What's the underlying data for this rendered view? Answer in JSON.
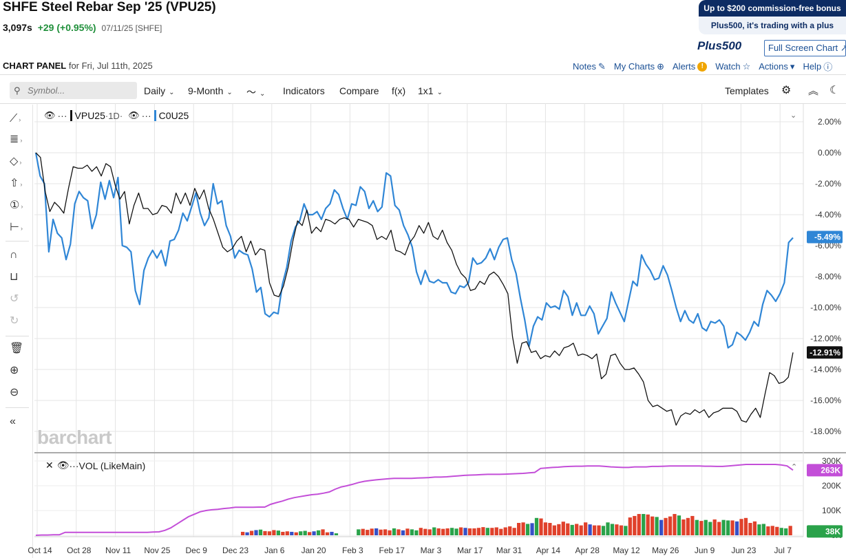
{
  "header": {
    "title": "SHFE Steel Rebar Sep '25 (VPU25)",
    "last": "3,097s",
    "change": "+29 (+0.95%)",
    "date_exchange": "07/11/25 [SHFE]"
  },
  "promo": {
    "line1": "Up to $200 commission-free bonus",
    "line2": "Plus500, it's trading with a plus",
    "brand": "Plus500",
    "fullscreen": "Full Screen Chart"
  },
  "panel": {
    "title": "CHART PANEL",
    "subtitle": "for Fri, Jul 11th, 2025",
    "links": [
      "Notes",
      "My Charts",
      "Alerts",
      "Watch",
      "Actions",
      "Help"
    ]
  },
  "toolbar": {
    "symbol_placeholder": "Symbol...",
    "interval": "Daily",
    "range": "9-Month",
    "indicators": "Indicators",
    "compare": "Compare",
    "fx": "f(x)",
    "layout": "1x1",
    "templates": "Templates"
  },
  "legend": {
    "main_symbol": "VPU25",
    "main_period": "·1D·",
    "compare_symbol": "C0U25",
    "volume_label": "VOL (LikeMain)"
  },
  "watermark": "barchart",
  "colors": {
    "main_line": "#111111",
    "compare_line": "#2f86d6",
    "volume_line": "#c34ed8",
    "vol_up": "#2aa24a",
    "vol_down": "#e0412b",
    "vol_neutral": "#3650c7"
  },
  "chart_data": {
    "type": "line",
    "x_labels": [
      "Oct 14",
      "Oct 28",
      "Nov 11",
      "Nov 25",
      "Dec 9",
      "Dec 23",
      "Jan 6",
      "Jan 20",
      "Feb 3",
      "Feb 17",
      "Mar 3",
      "Mar 17",
      "Mar 31",
      "Apr 14",
      "Apr 28",
      "May 12",
      "May 26",
      "Jun 9",
      "Jun 23",
      "Jul 7"
    ],
    "y_ticks": [
      "2.00%",
      "0.00%",
      "-2.00%",
      "-4.00%",
      "-6.00%",
      "-8.00%",
      "-10.00%",
      "-12.00%",
      "-14.00%",
      "-16.00%",
      "-18.00%"
    ],
    "ylim": [
      -19,
      2.5
    ],
    "series": [
      {
        "name": "VPU25",
        "last_label": "-12.91%",
        "values": [
          0.0,
          -0.3,
          -2.5,
          -3.8,
          -3.2,
          -3.5,
          -3.9,
          -2.3,
          -0.9,
          -1.0,
          -1.0,
          -0.8,
          -1.2,
          -0.9,
          -1.5,
          -0.7,
          -0.9,
          -2.1,
          -3.0,
          -2.5,
          -4.6,
          -3.4,
          -2.6,
          -3.6,
          -3.6,
          -4.0,
          -3.9,
          -3.4,
          -3.5,
          -3.9,
          -2.6,
          -3.3,
          -2.6,
          -3.4,
          -2.3,
          -3.0,
          -2.4,
          -3.6,
          -4.3,
          -5.2,
          -6.1,
          -6.4,
          -6.2,
          -5.7,
          -5.4,
          -6.4,
          -5.7,
          -6.6,
          -6.2,
          -6.3,
          -8.4,
          -9.2,
          -9.3,
          -8.6,
          -7.4,
          -5.7,
          -4.4,
          -4.7,
          -3.7,
          -5.2,
          -4.8,
          -5.1,
          -4.3,
          -4.4,
          -4.6,
          -4.3,
          -4.2,
          -4.3,
          -4.8,
          -4.3,
          -4.4,
          -4.5,
          -4.7,
          -5.6,
          -5.4,
          -5.6,
          -5.0,
          -6.3,
          -6.4,
          -6.6,
          -5.8,
          -5.4,
          -4.7,
          -5.2,
          -4.5,
          -5.4,
          -5.6,
          -5.0,
          -5.8,
          -6.3,
          -7.2,
          -7.8,
          -8.1,
          -8.9,
          -8.8,
          -8.3,
          -8.5,
          -7.9,
          -7.7,
          -8.0,
          -8.5,
          -9.1,
          -11.9,
          -13.6,
          -12.3,
          -12.2,
          -12.9,
          -12.8,
          -13.3,
          -13.1,
          -13.2,
          -12.8,
          -13.1,
          -12.6,
          -12.5,
          -12.3,
          -13.1,
          -13.0,
          -13.1,
          -13.3,
          -13.0,
          -14.6,
          -14.3,
          -13.1,
          -13.0,
          -13.6,
          -14.0,
          -14.0,
          -13.9,
          -14.3,
          -14.8,
          -16.0,
          -16.4,
          -16.3,
          -16.5,
          -16.7,
          -16.6,
          -17.6,
          -17.0,
          -16.8,
          -16.9,
          -16.6,
          -16.8,
          -16.6,
          -17.1,
          -16.8,
          -16.7,
          -16.5,
          -16.5,
          -16.5,
          -16.7,
          -17.3,
          -17.4,
          -16.9,
          -16.5,
          -17.1,
          -15.6,
          -14.2,
          -14.4,
          -14.9,
          -14.8,
          -14.5,
          -12.9
        ]
      },
      {
        "name": "C0U25",
        "last_label": "-5.49%",
        "values": [
          0.0,
          -1.5,
          -2.0,
          -6.4,
          -4.3,
          -5.2,
          -5.5,
          -6.9,
          -5.9,
          -3.3,
          -2.5,
          -2.9,
          -3.1,
          -4.9,
          -4.0,
          -1.9,
          -3.0,
          -1.8,
          -2.9,
          -1.6,
          -6.0,
          -6.1,
          -6.4,
          -8.9,
          -9.8,
          -7.6,
          -6.8,
          -6.3,
          -6.8,
          -6.3,
          -7.3,
          -5.7,
          -5.6,
          -5.0,
          -3.9,
          -4.4,
          -3.5,
          -2.6,
          -3.9,
          -4.7,
          -4.2,
          -2.0,
          -3.3,
          -3.1,
          -4.7,
          -5.4,
          -6.8,
          -6.3,
          -6.5,
          -6.6,
          -7.5,
          -9.0,
          -8.7,
          -10.4,
          -10.6,
          -10.3,
          -10.4,
          -8.5,
          -7.4,
          -5.7,
          -4.8,
          -4.4,
          -3.3,
          -4.0,
          -4.0,
          -3.8,
          -4.3,
          -3.6,
          -3.3,
          -2.4,
          -2.7,
          -3.6,
          -4.3,
          -3.3,
          -3.4,
          -2.2,
          -2.5,
          -3.6,
          -3.1,
          -3.8,
          -3.5,
          -1.3,
          -1.5,
          -3.4,
          -3.7,
          -4.7,
          -5.3,
          -6.1,
          -7.7,
          -8.5,
          -7.6,
          -8.3,
          -8.4,
          -8.2,
          -8.4,
          -8.4,
          -9.0,
          -9.1,
          -8.6,
          -8.7,
          -8.4,
          -6.8,
          -7.2,
          -7.1,
          -6.8,
          -6.2,
          -6.9,
          -6.1,
          -5.6,
          -5.5,
          -6.9,
          -7.8,
          -9.4,
          -10.8,
          -12.5,
          -11.2,
          -10.6,
          -10.8,
          -9.7,
          -10.0,
          -9.9,
          -10.1,
          -8.9,
          -9.3,
          -10.5,
          -9.7,
          -10.5,
          -10.5,
          -9.9,
          -10.4,
          -11.7,
          -11.2,
          -10.7,
          -9.0,
          -9.7,
          -10.3,
          -10.9,
          -9.6,
          -8.3,
          -8.6,
          -6.6,
          -7.2,
          -7.6,
          -8.2,
          -8.1,
          -7.3,
          -7.9,
          -8.9,
          -10.0,
          -10.9,
          -10.2,
          -10.8,
          -11.0,
          -10.4,
          -11.3,
          -11.5,
          -10.9,
          -11.0,
          -10.8,
          -11.2,
          -12.6,
          -12.4,
          -11.6,
          -11.8,
          -12.1,
          -11.6,
          -10.9,
          -11.2,
          -9.8,
          -8.9,
          -9.2,
          -9.6,
          -9.1,
          -8.4,
          -5.8,
          -5.49
        ]
      }
    ],
    "volume": {
      "label": "VOL (LikeMain)",
      "y_ticks": [
        "300K",
        "200K",
        "100K",
        "0K"
      ],
      "ylim": [
        0,
        300000
      ],
      "last_bar_label": "38K",
      "last_line_label": "263K",
      "bars_x_labels_positions": "aligned",
      "bars_first_date_index": 75,
      "bars": [
        14000,
        12000,
        18000,
        21000,
        23000,
        17000,
        16000,
        21000,
        19000,
        14000,
        16000,
        14000,
        12000,
        16000,
        18000,
        13000,
        16000,
        20000,
        24000,
        12000,
        14000,
        8000,
        0,
        0,
        0,
        0,
        24000,
        26000,
        22000,
        27000,
        28000,
        23000,
        24000,
        20000,
        28000,
        24000,
        20000,
        27000,
        24000,
        20000,
        30000,
        26000,
        24000,
        32000,
        28000,
        26000,
        28000,
        30000,
        27000,
        32000,
        30000,
        28000,
        28000,
        30000,
        33000,
        30000,
        30000,
        32000,
        26000,
        32000,
        36000,
        30000,
        50000,
        52000,
        46000,
        49000,
        70000,
        68000,
        52000,
        50000,
        40000,
        45000,
        55000,
        48000,
        42000,
        46000,
        40000,
        52000,
        44000,
        40000,
        40000,
        38000,
        52000,
        46000,
        44000,
        40000,
        38000,
        72000,
        78000,
        86000,
        86000,
        84000,
        76000,
        74000,
        62000,
        70000,
        76000,
        86000,
        80000,
        64000,
        70000,
        78000,
        62000,
        58000,
        62000,
        54000,
        64000,
        54000,
        62000,
        60000,
        60000,
        56000,
        66000,
        70000,
        50000,
        56000,
        44000,
        46000,
        36000,
        38000,
        34000,
        30000,
        28000,
        38000
      ],
      "bar_colors": "dcdcuddduddcduudcuddcuuuuuudddcdddudcduuddduddduudcddddudddddddducudddddddudddcdduuuddudddudducddduddduduudduudcdddduuddduuddu",
      "cumulative": [
        0,
        1000,
        1000,
        2000,
        2000,
        12000,
        12000,
        12000,
        12000,
        12000,
        12000,
        12000,
        12000,
        12000,
        12000,
        12000,
        12000,
        12000,
        12000,
        12000,
        13000,
        14000,
        20000,
        30000,
        45000,
        60000,
        75000,
        85000,
        95000,
        100000,
        103000,
        105000,
        108000,
        110000,
        113000,
        113000,
        113000,
        113000,
        114000,
        114000,
        125000,
        132000,
        138000,
        146000,
        152000,
        156000,
        160000,
        164000,
        166000,
        170000,
        175000,
        186000,
        195000,
        200000,
        206000,
        213000,
        218000,
        221000,
        224000,
        226000,
        228000,
        230000,
        230000,
        230000,
        230000,
        231000,
        232000,
        233000,
        235000,
        235000,
        236000,
        238000,
        240000,
        242000,
        243000,
        244000,
        245000,
        246000,
        246000,
        246000,
        247000,
        248000,
        249000,
        250000,
        252000,
        254000,
        270000,
        272000,
        274000,
        275000,
        277000,
        278000,
        279000,
        279000,
        280000,
        280000,
        280000,
        278000,
        276000,
        275000,
        274000,
        274000,
        276000,
        276000,
        276000,
        278000,
        278000,
        279000,
        280000,
        280000,
        280000,
        280000,
        280000,
        280000,
        279000,
        279000,
        278000,
        278000,
        280000,
        282000,
        284000,
        286000,
        286000,
        286000,
        286000,
        286000,
        286000,
        284000,
        280000,
        263000
      ]
    }
  }
}
